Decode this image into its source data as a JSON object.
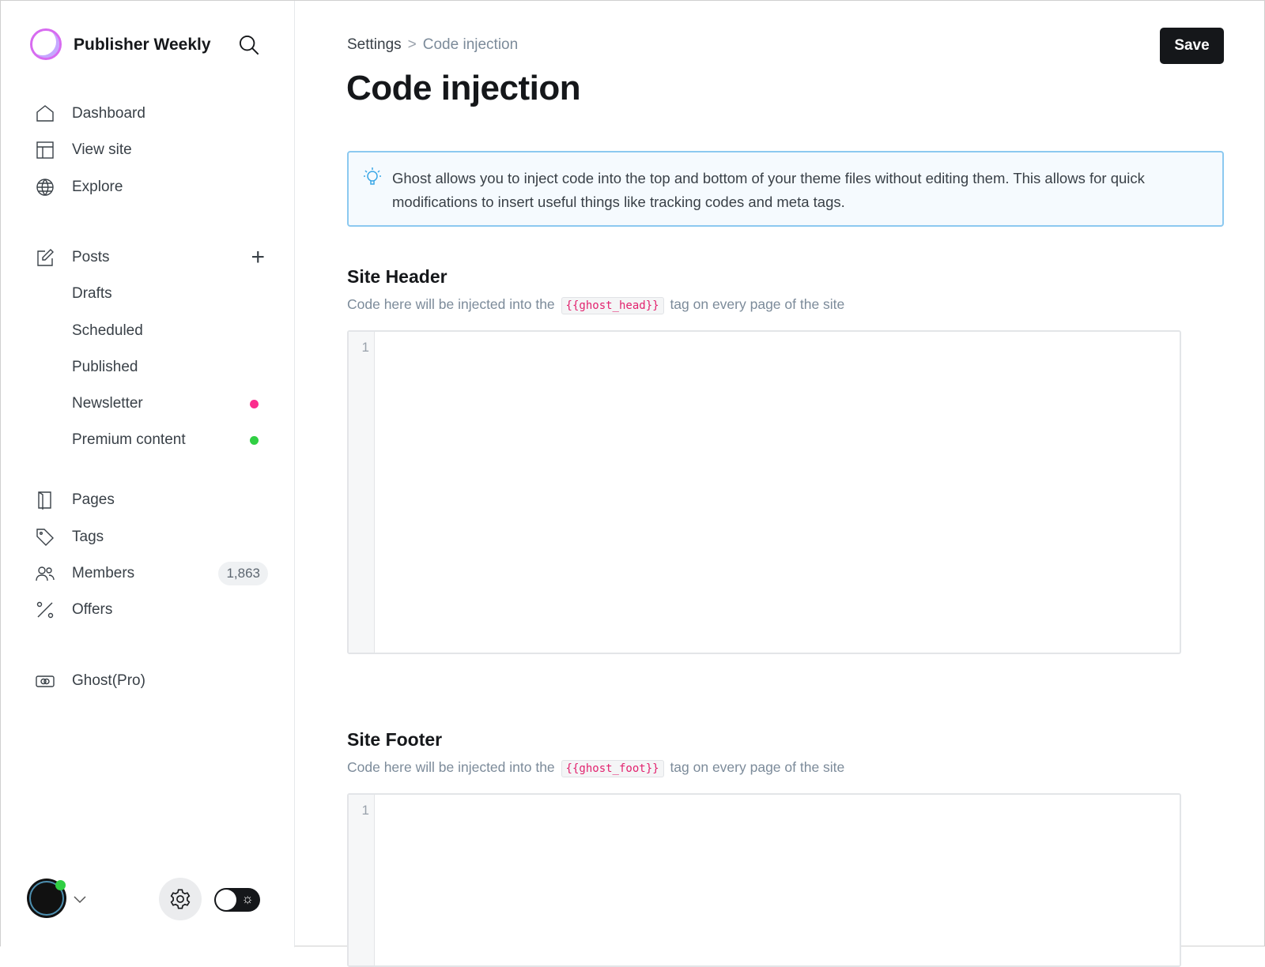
{
  "sidebar": {
    "site_title": "Publisher Weekly",
    "items": [
      {
        "label": "Dashboard",
        "icon": "home-icon"
      },
      {
        "label": "View site",
        "icon": "layout-icon"
      },
      {
        "label": "Explore",
        "icon": "globe-icon"
      },
      {
        "label": "Posts",
        "icon": "edit-icon"
      },
      {
        "label": "Drafts"
      },
      {
        "label": "Scheduled"
      },
      {
        "label": "Published"
      },
      {
        "label": "Newsletter",
        "dot_color": "#fb2d8d"
      },
      {
        "label": "Premium content",
        "dot_color": "#30cf43"
      },
      {
        "label": "Pages",
        "icon": "page-icon"
      },
      {
        "label": "Tags",
        "icon": "tag-icon"
      },
      {
        "label": "Members",
        "icon": "members-icon",
        "count": "1,863"
      },
      {
        "label": "Offers",
        "icon": "percent-icon"
      },
      {
        "label": "Ghost(Pro)",
        "icon": "ghost-pro-icon"
      }
    ],
    "plus": "+"
  },
  "breadcrumb": {
    "parent": "Settings",
    "separator": ">",
    "current": "Code injection"
  },
  "page_title": "Code injection",
  "save_label": "Save",
  "info_text": "Ghost allows you to inject code into the top and bottom of your theme files without editing them. This allows for quick modifications to insert useful things like tracking codes and meta tags.",
  "header_section": {
    "title": "Site Header",
    "desc_before": "Code here will be injected into the",
    "code": "{{ghost_head}}",
    "desc_after": "tag on every page of the site",
    "line": "1"
  },
  "footer_section": {
    "title": "Site Footer",
    "desc_before": "Code here will be injected into the",
    "code": "{{ghost_foot}}",
    "desc_after": "tag on every page of the site",
    "line": "1"
  },
  "colors": {
    "accent_info_border": "#8cc9f0",
    "save_bg": "#15171a",
    "online": "#30cf43"
  }
}
